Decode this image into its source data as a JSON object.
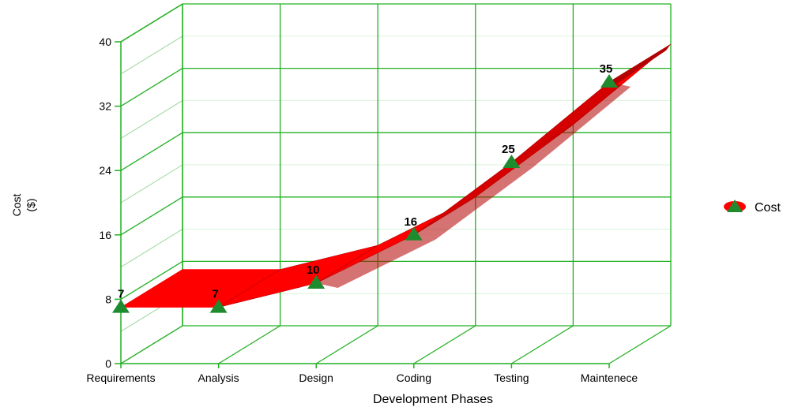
{
  "chart_data": {
    "type": "line",
    "categories": [
      "Requirements",
      "Analysis",
      "Design",
      "Coding",
      "Testing",
      "Maintenece"
    ],
    "series": [
      {
        "name": "Cost",
        "values": [
          7,
          7,
          10,
          16,
          25,
          35
        ]
      }
    ],
    "xlabel": "Development Phases",
    "ylabel_lines": [
      "Cost",
      "($)"
    ],
    "ylim": [
      0,
      40
    ],
    "yticks": [
      0,
      8,
      16,
      24,
      32,
      40
    ],
    "grid": true,
    "three_d": true,
    "legend_position": "right",
    "colors": {
      "ribbon": "#ff0000",
      "ribbon_side": "#b30000",
      "marker": "#1e8c2e",
      "grid": "#22b022"
    }
  }
}
